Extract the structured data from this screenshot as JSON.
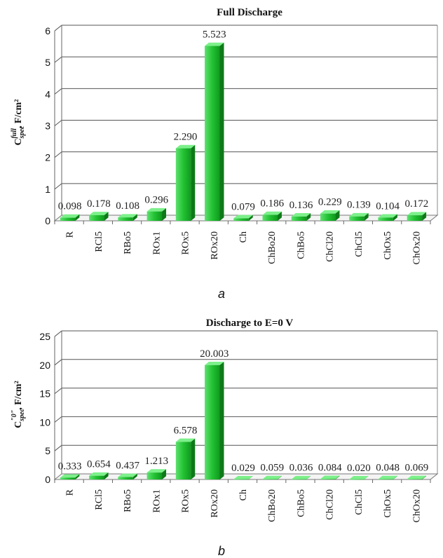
{
  "chart_data": [
    {
      "type": "bar",
      "title": "Full Discharge",
      "ylabel": {
        "main": "C",
        "sub": "spec",
        "sup": "full",
        "unit": ", F/cm²"
      },
      "ylim": [
        0,
        6
      ],
      "yticks": [
        "0",
        "1",
        "2",
        "3",
        "4",
        "5",
        "6"
      ],
      "categories": [
        "R",
        "RCl5",
        "RBo5",
        "ROx1",
        "ROx5",
        "ROx20",
        "Ch",
        "ChBo20",
        "ChBo5",
        "ChCl20",
        "ChCl5",
        "ChOx5",
        "ChOx20"
      ],
      "values": [
        0.098,
        0.178,
        0.108,
        0.296,
        2.29,
        5.523,
        0.079,
        0.186,
        0.136,
        0.229,
        0.139,
        0.104,
        0.172
      ],
      "value_labels": [
        "0.098",
        "0.178",
        "0.108",
        "0.296",
        "2.290",
        "5.523",
        "0.079",
        "0.186",
        "0.136",
        "0.229",
        "0.139",
        "0.104",
        "0.172"
      ],
      "grid": true,
      "bar_color": "#22bb33",
      "panel_label": "a"
    },
    {
      "type": "bar",
      "title": "Discharge to E=0 V",
      "ylabel": {
        "main": "C",
        "sub": "spec",
        "sup": "\"0\"",
        "unit": ", F/cm²"
      },
      "ylim": [
        0,
        25
      ],
      "yticks": [
        "0",
        "5",
        "10",
        "15",
        "20",
        "25"
      ],
      "categories": [
        "R",
        "RCl5",
        "RBo5",
        "ROx1",
        "ROx5",
        "ROx20",
        "Ch",
        "ChBo20",
        "ChBo5",
        "ChCl20",
        "ChCl5",
        "ChOx5",
        "ChOx20"
      ],
      "values": [
        0.333,
        0.654,
        0.437,
        1.213,
        6.578,
        20.003,
        0.029,
        0.059,
        0.036,
        0.084,
        0.02,
        0.048,
        0.069
      ],
      "value_labels": [
        "0.333",
        "0.654",
        "0.437",
        "1.213",
        "6.578",
        "20.003",
        "0.029",
        "0.059",
        "0.036",
        "0.084",
        "0.020",
        "0.048",
        "0.069"
      ],
      "grid": true,
      "bar_color": "#22bb33",
      "panel_label": "b"
    }
  ]
}
